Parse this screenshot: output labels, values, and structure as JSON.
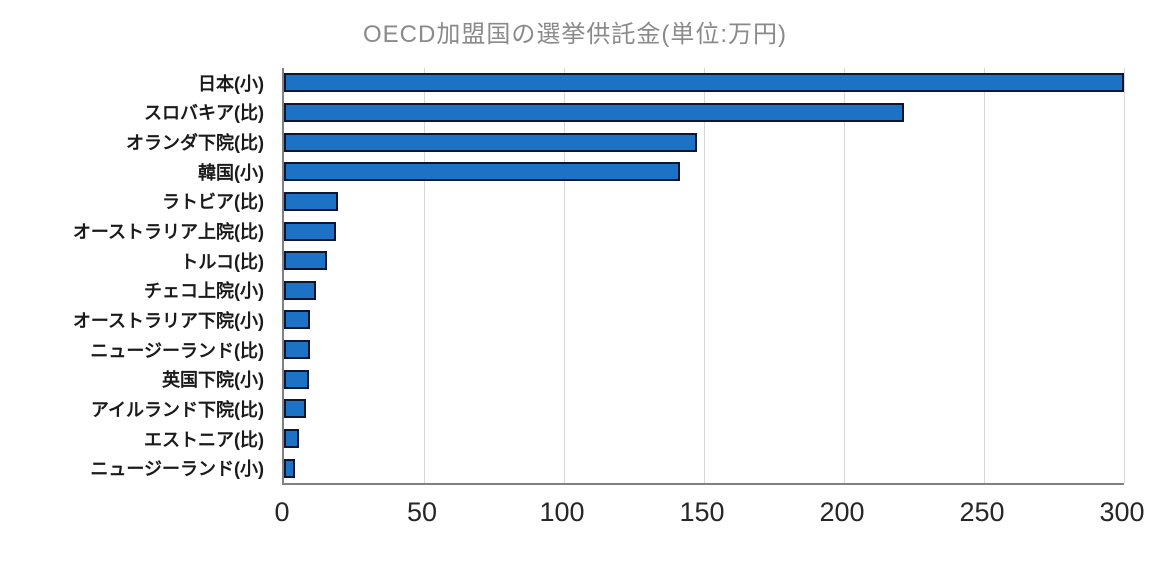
{
  "chart_data": {
    "type": "bar",
    "orientation": "horizontal",
    "title": "OECD加盟国の選挙供託金(単位:万円)",
    "categories": [
      "日本(小)",
      "スロバキア(比)",
      "オランダ下院(比)",
      "韓国(小)",
      "ラトビア(比)",
      "オーストラリア上院(比)",
      "トルコ(比)",
      "チェコ上院(小)",
      "オーストラリア下院(小)",
      "ニュージーランド(比)",
      "英国下院(小)",
      "アイルランド下院(比)",
      "エストニア(比)",
      "ニュージーランド(小)"
    ],
    "values": [
      300,
      220,
      146,
      140,
      18,
      17,
      14,
      10,
      8,
      8,
      7.5,
      6.5,
      4,
      2.5
    ],
    "xlabel": "",
    "ylabel": "",
    "xlim": [
      0,
      300
    ],
    "xticks": [
      0,
      50,
      100,
      150,
      200,
      250,
      300
    ],
    "grid": true,
    "legend_position": "none",
    "colors": {
      "bar_fill": "#1c72c4",
      "bar_border": "#0d1530",
      "title_text": "#8a8a8a",
      "tick_text": "#262626",
      "category_text": "#1a1a1a",
      "gridline": "#d6d6d6",
      "axis_line": "#808080",
      "background": "#ffffff"
    }
  }
}
